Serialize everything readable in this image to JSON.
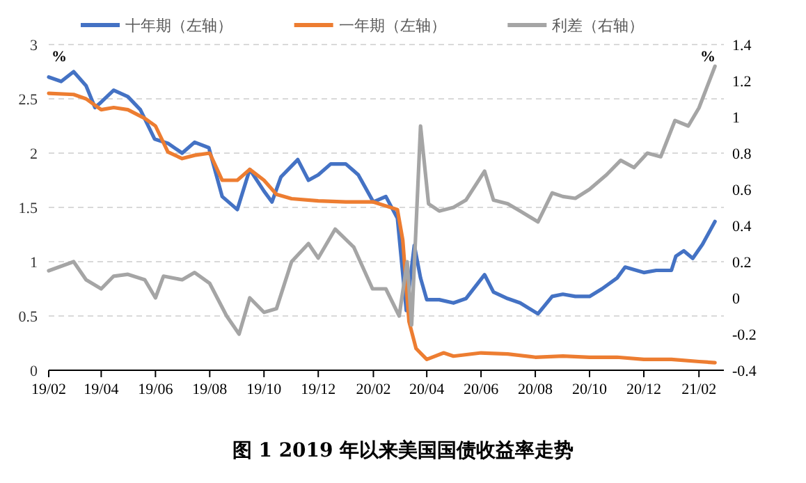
{
  "chart_data": {
    "type": "line",
    "title": "图 1 2019 年以来美国国债收益率走势",
    "ylabel": "%",
    "y2label": "%",
    "legend": "top",
    "grid": "y",
    "marker": "none",
    "line_style": "solid",
    "xlim": [
      "2019-02-01",
      "2021-03-01"
    ],
    "xticks": [
      {
        "value": "2019-02-01",
        "label": "19/02"
      },
      {
        "value": "2019-04-01",
        "label": "19/04"
      },
      {
        "value": "2019-06-01",
        "label": "19/06"
      },
      {
        "value": "2019-08-01",
        "label": "19/08"
      },
      {
        "value": "2019-10-01",
        "label": "19/10"
      },
      {
        "value": "2019-12-01",
        "label": "19/12"
      },
      {
        "value": "2020-02-01",
        "label": "20/02"
      },
      {
        "value": "2020-04-01",
        "label": "20/04"
      },
      {
        "value": "2020-06-01",
        "label": "20/06"
      },
      {
        "value": "2020-08-01",
        "label": "20/08"
      },
      {
        "value": "2020-10-01",
        "label": "20/10"
      },
      {
        "value": "2020-12-01",
        "label": "20/12"
      },
      {
        "value": "2021-02-01",
        "label": "21/02"
      }
    ],
    "ylim": [
      0,
      3
    ],
    "yticks": [
      0,
      0.5,
      1,
      1.5,
      2,
      2.5,
      3
    ],
    "y2lim": [
      -0.4,
      1.4
    ],
    "y2ticks": [
      -0.4,
      -0.2,
      0,
      0.2,
      0.4,
      0.6,
      0.8,
      1,
      1.2,
      1.4
    ],
    "series": [
      {
        "name": "十年期（左轴）",
        "color": "#4472c4",
        "x": [
          "2019-02-01",
          "2019-02-15",
          "2019-03-01",
          "2019-03-15",
          "2019-03-25",
          "2019-04-01",
          "2019-04-15",
          "2019-05-01",
          "2019-05-15",
          "2019-05-31",
          "2019-06-15",
          "2019-07-01",
          "2019-07-15",
          "2019-07-31",
          "2019-08-15",
          "2019-09-01",
          "2019-09-15",
          "2019-10-01",
          "2019-10-10",
          "2019-10-20",
          "2019-11-08",
          "2019-11-20",
          "2019-12-01",
          "2019-12-15",
          "2020-01-01",
          "2020-01-15",
          "2020-02-01",
          "2020-02-15",
          "2020-02-28",
          "2020-03-09",
          "2020-03-18",
          "2020-03-25",
          "2020-04-01",
          "2020-04-15",
          "2020-05-01",
          "2020-05-15",
          "2020-06-05",
          "2020-06-15",
          "2020-07-01",
          "2020-07-15",
          "2020-08-04",
          "2020-08-20",
          "2020-09-01",
          "2020-09-15",
          "2020-10-01",
          "2020-10-15",
          "2020-11-01",
          "2020-11-10",
          "2020-12-01",
          "2020-12-15",
          "2021-01-01",
          "2021-01-06",
          "2021-01-15",
          "2021-01-25",
          "2021-02-05",
          "2021-02-19"
        ],
        "values": [
          2.7,
          2.66,
          2.75,
          2.62,
          2.42,
          2.47,
          2.58,
          2.52,
          2.4,
          2.13,
          2.09,
          2.0,
          2.1,
          2.05,
          1.6,
          1.48,
          1.85,
          1.65,
          1.55,
          1.78,
          1.94,
          1.75,
          1.8,
          1.9,
          1.9,
          1.8,
          1.55,
          1.6,
          1.4,
          0.55,
          1.15,
          0.85,
          0.65,
          0.65,
          0.62,
          0.66,
          0.88,
          0.72,
          0.66,
          0.62,
          0.52,
          0.68,
          0.7,
          0.68,
          0.68,
          0.75,
          0.85,
          0.95,
          0.9,
          0.92,
          0.92,
          1.05,
          1.1,
          1.03,
          1.16,
          1.37
        ]
      },
      {
        "name": "一年期（左轴）",
        "color": "#ed7d31",
        "x": [
          "2019-02-01",
          "2019-03-01",
          "2019-03-15",
          "2019-04-01",
          "2019-04-15",
          "2019-05-01",
          "2019-05-20",
          "2019-06-01",
          "2019-06-15",
          "2019-07-01",
          "2019-07-15",
          "2019-08-01",
          "2019-08-15",
          "2019-09-01",
          "2019-09-15",
          "2019-10-01",
          "2019-10-15",
          "2019-11-01",
          "2019-12-01",
          "2020-01-01",
          "2020-02-01",
          "2020-02-28",
          "2020-03-05",
          "2020-03-12",
          "2020-03-20",
          "2020-04-01",
          "2020-04-20",
          "2020-05-01",
          "2020-06-01",
          "2020-07-01",
          "2020-08-01",
          "2020-09-01",
          "2020-10-01",
          "2020-11-01",
          "2020-12-01",
          "2021-01-01",
          "2021-02-01",
          "2021-02-19"
        ],
        "values": [
          2.55,
          2.54,
          2.5,
          2.4,
          2.42,
          2.4,
          2.32,
          2.25,
          2.01,
          1.95,
          1.98,
          2.0,
          1.75,
          1.75,
          1.85,
          1.75,
          1.62,
          1.58,
          1.56,
          1.55,
          1.55,
          1.48,
          1.2,
          0.45,
          0.2,
          0.1,
          0.16,
          0.13,
          0.16,
          0.15,
          0.12,
          0.13,
          0.12,
          0.12,
          0.1,
          0.1,
          0.08,
          0.07
        ]
      },
      {
        "name": "利差（右轴）",
        "color": "#a5a5a5",
        "axis": "y2",
        "x": [
          "2019-02-01",
          "2019-03-01",
          "2019-03-15",
          "2019-04-01",
          "2019-04-15",
          "2019-05-01",
          "2019-05-20",
          "2019-06-01",
          "2019-06-10",
          "2019-07-01",
          "2019-07-15",
          "2019-08-01",
          "2019-08-20",
          "2019-09-03",
          "2019-09-15",
          "2019-10-01",
          "2019-10-15",
          "2019-11-01",
          "2019-11-20",
          "2019-12-01",
          "2019-12-20",
          "2020-01-10",
          "2020-01-31",
          "2020-02-15",
          "2020-03-01",
          "2020-03-10",
          "2020-03-15",
          "2020-03-25",
          "2020-04-03",
          "2020-04-15",
          "2020-05-01",
          "2020-05-15",
          "2020-06-05",
          "2020-06-15",
          "2020-07-01",
          "2020-07-15",
          "2020-08-04",
          "2020-08-20",
          "2020-09-01",
          "2020-09-15",
          "2020-10-01",
          "2020-10-20",
          "2020-11-05",
          "2020-11-20",
          "2020-12-05",
          "2020-12-20",
          "2021-01-05",
          "2021-01-20",
          "2021-02-01",
          "2021-02-19"
        ],
        "values": [
          0.15,
          0.2,
          0.1,
          0.05,
          0.12,
          0.13,
          0.1,
          0.0,
          0.12,
          0.1,
          0.14,
          0.08,
          -0.1,
          -0.2,
          0.0,
          -0.08,
          -0.06,
          0.2,
          0.3,
          0.22,
          0.38,
          0.28,
          0.05,
          0.05,
          -0.1,
          0.2,
          -0.15,
          0.95,
          0.52,
          0.48,
          0.5,
          0.54,
          0.7,
          0.54,
          0.52,
          0.48,
          0.42,
          0.58,
          0.56,
          0.55,
          0.6,
          0.68,
          0.76,
          0.72,
          0.8,
          0.78,
          0.98,
          0.95,
          1.05,
          1.28
        ]
      }
    ]
  }
}
